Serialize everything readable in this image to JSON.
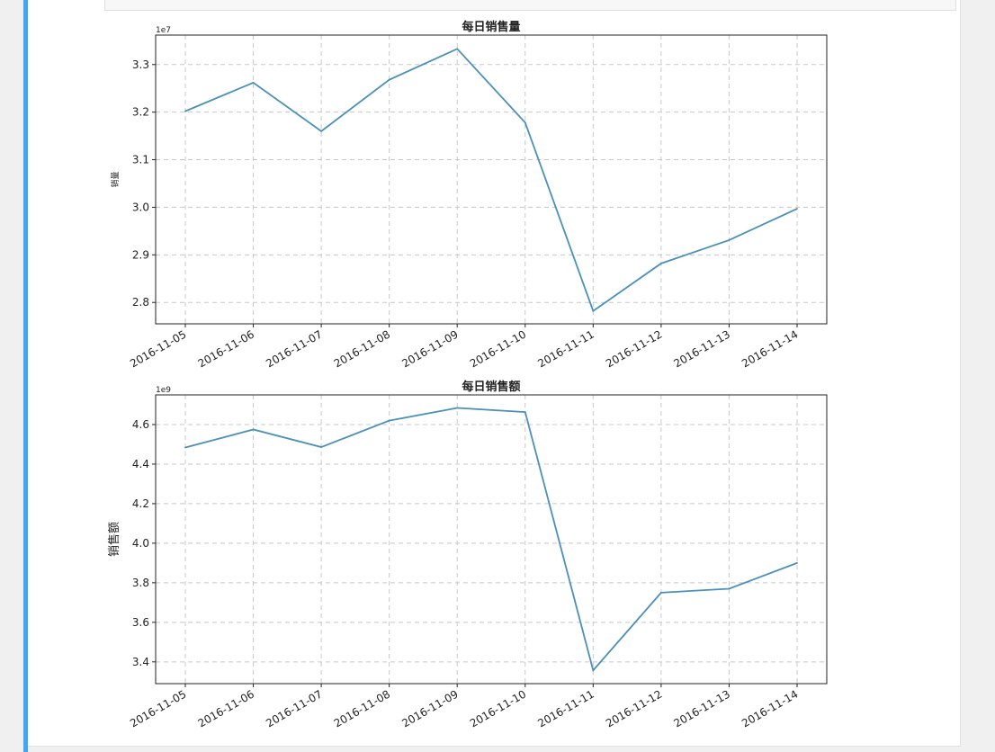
{
  "notebook": {
    "accent_color": "#42a5f5"
  },
  "chart_data": [
    {
      "type": "line",
      "title": "每日销售量",
      "xlabel": "",
      "ylabel": "销量",
      "scale_label": "1e7",
      "categories": [
        "2016-11-05",
        "2016-11-06",
        "2016-11-07",
        "2016-11-08",
        "2016-11-09",
        "2016-11-10",
        "2016-11-11",
        "2016-11-12",
        "2016-11-13",
        "2016-11-14"
      ],
      "series": [
        {
          "values": [
            32020000,
            32620000,
            31600000,
            32680000,
            33330000,
            31780000,
            27820000,
            28820000,
            29310000,
            29970000
          ],
          "color": "#4a90b8"
        }
      ],
      "yticks": [
        2.8,
        2.9,
        3.0,
        3.1,
        3.2,
        3.3
      ],
      "ytick_labels": [
        "2.8",
        "2.9",
        "3.0",
        "3.1",
        "3.2",
        "3.3"
      ],
      "ylim_scaled": [
        2.755,
        3.362
      ],
      "grid": true,
      "grid_style": "dashed"
    },
    {
      "type": "line",
      "title": "每日销售额",
      "xlabel": "",
      "ylabel": "销售额",
      "scale_label": "1e9",
      "categories": [
        "2016-11-05",
        "2016-11-06",
        "2016-11-07",
        "2016-11-08",
        "2016-11-09",
        "2016-11-10",
        "2016-11-11",
        "2016-11-12",
        "2016-11-13",
        "2016-11-14"
      ],
      "series": [
        {
          "values": [
            4484000000,
            4575000000,
            4486000000,
            4620000000,
            4684000000,
            4663000000,
            3357000000,
            3750000000,
            3770000000,
            3900000000
          ],
          "color": "#4a90b8"
        }
      ],
      "yticks": [
        3.4,
        3.6,
        3.8,
        4.0,
        4.2,
        4.4,
        4.6
      ],
      "ytick_labels": [
        "3.4",
        "3.6",
        "3.8",
        "4.0",
        "4.2",
        "4.4",
        "4.6"
      ],
      "ylim_scaled": [
        3.29,
        4.75
      ],
      "grid": true,
      "grid_style": "dashed"
    }
  ]
}
